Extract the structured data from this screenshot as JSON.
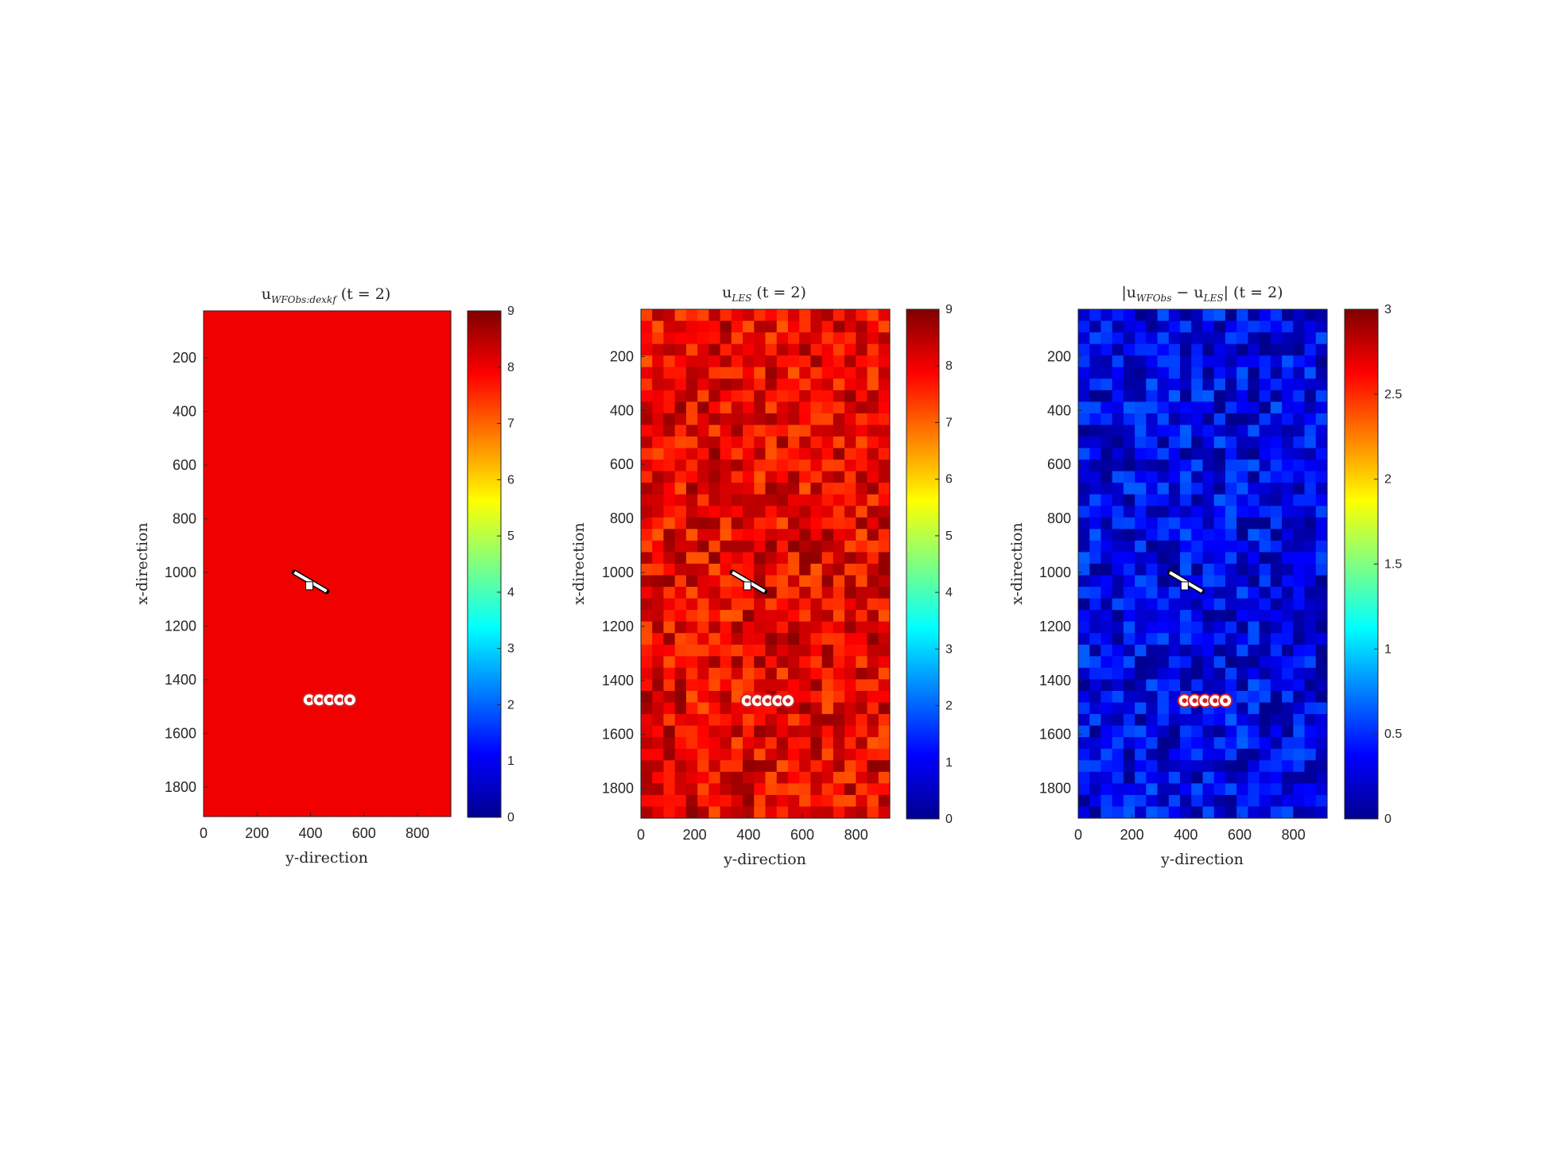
{
  "chart_data": [
    {
      "type": "heatmap",
      "title_main": "u",
      "title_sub": "WFObs:dexkf",
      "title_suffix": " (t = 2)",
      "xlabel": "y-direction",
      "ylabel": "x-direction",
      "xlim": [
        0,
        925
      ],
      "ylim": [
        25,
        1910
      ],
      "xticks": [
        "0",
        "200",
        "400",
        "600",
        "800"
      ],
      "yticks": [
        "200",
        "400",
        "600",
        "800",
        "1000",
        "1200",
        "1400",
        "1600",
        "1800"
      ],
      "colorbar": {
        "min": 0,
        "max": 9,
        "ticks": [
          "0",
          "1",
          "2",
          "3",
          "4",
          "5",
          "6",
          "7",
          "8",
          "9"
        ]
      },
      "field": {
        "base": 8.0,
        "variation": 0.0
      },
      "turbines": {
        "x": [
          1475,
          1475,
          1475,
          1475,
          1475
        ],
        "y": [
          395,
          433,
          471,
          509,
          547
        ]
      },
      "upstream_turbine": {
        "x": [
          1000,
          1070
        ],
        "y": [
          340,
          460
        ],
        "yaw_deg": 30
      }
    },
    {
      "type": "heatmap",
      "title_main": "u",
      "title_sub": "LES",
      "title_suffix": " (t = 2)",
      "xlabel": "y-direction",
      "ylabel": "x-direction",
      "xlim": [
        0,
        925
      ],
      "ylim": [
        25,
        1910
      ],
      "xticks": [
        "0",
        "200",
        "400",
        "600",
        "800"
      ],
      "yticks": [
        "200",
        "400",
        "600",
        "800",
        "1000",
        "1200",
        "1400",
        "1600",
        "1800"
      ],
      "colorbar": {
        "min": 0,
        "max": 9,
        "ticks": [
          "0",
          "1",
          "2",
          "3",
          "4",
          "5",
          "6",
          "7",
          "8",
          "9"
        ]
      },
      "field": {
        "base": 8.0,
        "variation": 0.9
      },
      "turbines": {
        "x": [
          1475,
          1475,
          1475,
          1475,
          1475
        ],
        "y": [
          395,
          433,
          471,
          509,
          547
        ]
      },
      "upstream_turbine": {
        "x": [
          1000,
          1070
        ],
        "y": [
          340,
          460
        ],
        "yaw_deg": 30
      }
    },
    {
      "type": "heatmap",
      "title_main": "|u",
      "title_sub": "WFObs",
      "title_mid": " − u",
      "title_sub2": "LES",
      "title_suffix": "| (t = 2)",
      "xlabel": "y-direction",
      "ylabel": "x-direction",
      "xlim": [
        0,
        925
      ],
      "ylim": [
        25,
        1910
      ],
      "xticks": [
        "0",
        "200",
        "400",
        "600",
        "800"
      ],
      "yticks": [
        "200",
        "400",
        "600",
        "800",
        "1000",
        "1200",
        "1400",
        "1600",
        "1800"
      ],
      "colorbar": {
        "min": 0,
        "max": 3,
        "ticks": [
          "0",
          "0.5",
          "1",
          "1.5",
          "2",
          "2.5",
          "3"
        ]
      },
      "field": {
        "base": 0.3,
        "variation": 0.35
      },
      "turbines": {
        "x": [
          1475,
          1475,
          1475,
          1475,
          1475
        ],
        "y": [
          395,
          433,
          471,
          509,
          547
        ]
      },
      "upstream_turbine": {
        "x": [
          1000,
          1070
        ],
        "y": [
          340,
          460
        ],
        "yaw_deg": 30
      }
    }
  ]
}
